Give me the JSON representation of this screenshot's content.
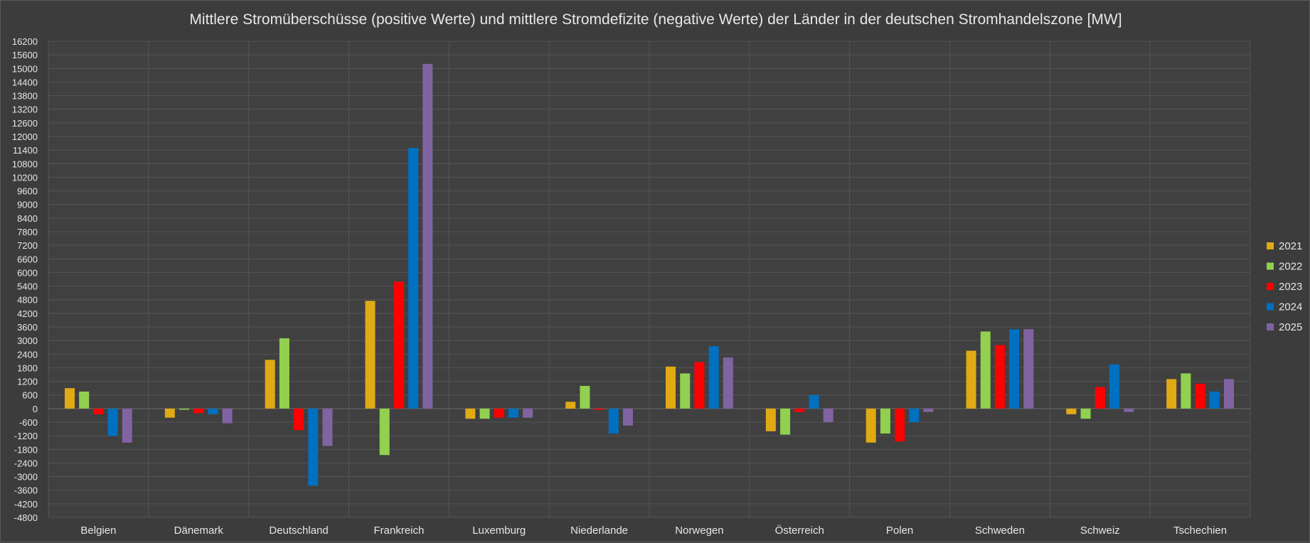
{
  "chart_data": {
    "type": "bar",
    "title": "Mittlere Stromüberschüsse (positive Werte) und mittlere Stromdefizite (negative Werte) der Länder in der deutschen Stromhandelszone [MW]",
    "xlabel": "",
    "ylabel": "",
    "ylim": [
      -4800,
      16200
    ],
    "ytick_step": 600,
    "grid": true,
    "legend_position": "right",
    "categories": [
      "Belgien",
      "Dänemark",
      "Deutschland",
      "Frankreich",
      "Luxemburg",
      "Niederlande",
      "Norwegen",
      "Österreich",
      "Polen",
      "Schweden",
      "Schweiz",
      "Tschechien"
    ],
    "series": [
      {
        "name": "2021",
        "color": "#e0aa14",
        "values": [
          900,
          -400,
          2150,
          4750,
          -450,
          300,
          1850,
          -1000,
          -1500,
          2550,
          -250,
          1300
        ]
      },
      {
        "name": "2022",
        "color": "#92d050",
        "values": [
          750,
          -50,
          3100,
          -2050,
          -450,
          1000,
          1550,
          -1150,
          -1100,
          3400,
          -450,
          1550
        ]
      },
      {
        "name": "2023",
        "color": "#ff0000",
        "values": [
          -250,
          -200,
          -950,
          5600,
          -400,
          -50,
          2050,
          -150,
          -1450,
          2800,
          950,
          1100
        ]
      },
      {
        "name": "2024",
        "color": "#0070c0",
        "values": [
          -1200,
          -250,
          -3400,
          11500,
          -400,
          -1100,
          2750,
          600,
          -600,
          3500,
          1950,
          750
        ]
      },
      {
        "name": "2025",
        "color": "#8064a2",
        "values": [
          -1500,
          -650,
          -1650,
          15200,
          -400,
          -750,
          2250,
          -600,
          -150,
          3500,
          -150,
          1300
        ]
      }
    ]
  }
}
